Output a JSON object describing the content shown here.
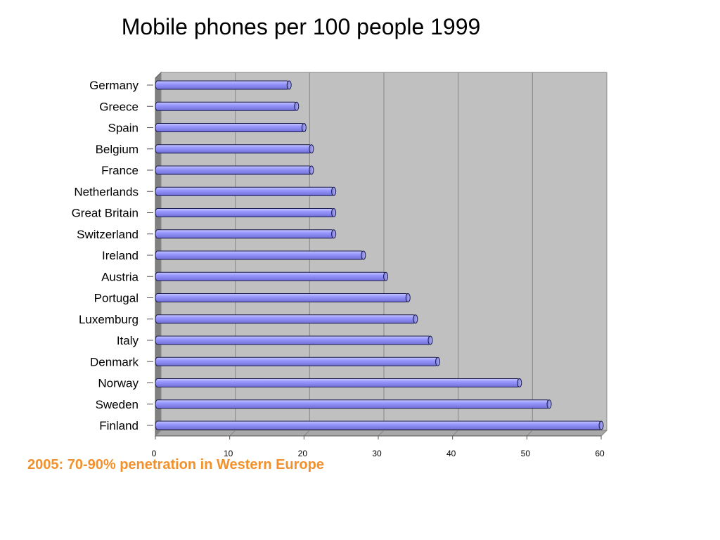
{
  "slide": {
    "title": "Mobile phones per 100 people 1999",
    "note": "2005: 70-90% penetration in Western Europe"
  },
  "chart_data": {
    "type": "bar",
    "orientation": "horizontal",
    "title": "Mobile phones per 100 people 1999",
    "xlabel": "",
    "ylabel": "",
    "categories": [
      "Germany",
      "Greece",
      "Spain",
      "Belgium",
      "France",
      "Netherlands",
      "Great Britain",
      "Switzerland",
      "Ireland",
      "Austria",
      "Portugal",
      "Luxemburg",
      "Italy",
      "Denmark",
      "Norway",
      "Sweden",
      "Finland"
    ],
    "values": [
      18,
      19,
      20,
      21,
      21,
      24,
      24,
      24,
      28,
      31,
      34,
      35,
      37,
      38,
      49,
      53,
      60
    ],
    "xlim": [
      0,
      60
    ],
    "xticks": [
      0,
      10,
      20,
      30,
      40,
      50,
      60
    ],
    "grid": true,
    "legend": "none",
    "colors": {
      "bar_fill": "#9999FF",
      "bar_stroke": "#1a1a4d",
      "plot_bg": "#C0C0C0",
      "plot_wall": "#808080",
      "gridline": "#888888",
      "note": "#F2912C"
    }
  }
}
